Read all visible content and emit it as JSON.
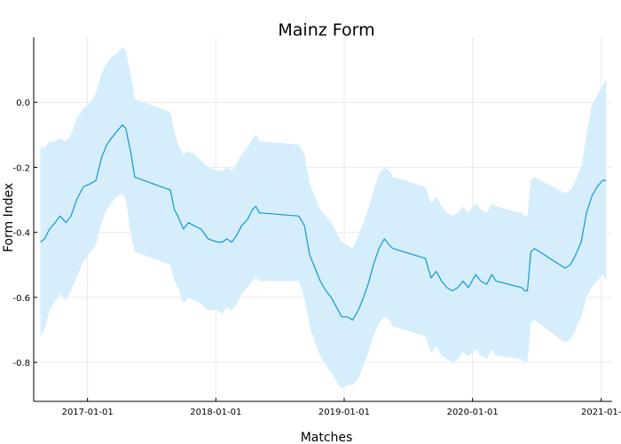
{
  "chart_data": {
    "type": "line",
    "title": "Mainz Form",
    "xlabel": "Matches",
    "ylabel": "Form Index",
    "x_ticks": [
      "2017-01-01",
      "2018-01-01",
      "2019-01-01",
      "2020-01-01",
      "2021-01-"
    ],
    "y_ticks": [
      "0.0",
      "-0.2",
      "-0.4",
      "-0.6",
      "-0.8"
    ],
    "ylim": [
      -0.92,
      0.2
    ],
    "xlim": [
      "2016-08-01",
      "2021-02-01"
    ],
    "grid": true,
    "legend": "none",
    "colors": {
      "line": "#0f97d9",
      "band": "#d6eefb"
    },
    "series": [
      {
        "type": "line",
        "x": [
          "2016-08-20",
          "2016-09-01",
          "2016-09-15",
          "2016-10-01",
          "2016-10-15",
          "2016-11-01",
          "2016-11-15",
          "2016-12-01",
          "2016-12-20",
          "2017-01-10",
          "2017-01-25",
          "2017-02-10",
          "2017-02-25",
          "2017-03-10",
          "2017-03-25",
          "2017-04-10",
          "2017-04-20",
          "2017-05-05",
          "2017-05-15",
          "2017-08-25",
          "2017-09-05",
          "2017-09-15",
          "2017-10-01",
          "2017-10-15",
          "2017-11-01",
          "2017-11-20",
          "2017-12-10",
          "2018-01-05",
          "2018-01-20",
          "2018-02-01",
          "2018-02-15",
          "2018-03-01",
          "2018-03-15",
          "2018-04-01",
          "2018-04-15",
          "2018-04-25",
          "2018-05-05",
          "2018-08-25",
          "2018-09-10",
          "2018-09-25",
          "2018-10-10",
          "2018-10-25",
          "2018-11-10",
          "2018-11-25",
          "2018-12-10",
          "2018-12-25",
          "2019-01-10",
          "2019-01-25",
          "2019-02-10",
          "2019-02-25",
          "2019-03-10",
          "2019-03-25",
          "2019-04-10",
          "2019-04-25",
          "2019-05-10",
          "2019-05-20",
          "2019-08-20",
          "2019-09-05",
          "2019-09-20",
          "2019-10-05",
          "2019-10-20",
          "2019-11-05",
          "2019-11-20",
          "2019-12-05",
          "2019-12-20",
          "2020-01-10",
          "2020-01-25",
          "2020-02-10",
          "2020-02-25",
          "2020-03-08",
          "2020-05-20",
          "2020-05-28",
          "2020-06-05",
          "2020-06-15",
          "2020-06-25",
          "2020-09-20",
          "2020-10-05",
          "2020-10-20",
          "2020-11-05",
          "2020-11-20",
          "2020-12-05",
          "2020-12-20",
          "2021-01-05",
          "2021-01-15"
        ],
        "y": [
          -0.43,
          -0.42,
          -0.39,
          -0.37,
          -0.35,
          -0.37,
          -0.35,
          -0.3,
          -0.26,
          -0.25,
          -0.24,
          -0.17,
          -0.13,
          -0.11,
          -0.09,
          -0.07,
          -0.08,
          -0.16,
          -0.23,
          -0.27,
          -0.33,
          -0.35,
          -0.39,
          -0.37,
          -0.38,
          -0.39,
          -0.42,
          -0.43,
          -0.43,
          -0.42,
          -0.43,
          -0.41,
          -0.38,
          -0.36,
          -0.33,
          -0.32,
          -0.34,
          -0.35,
          -0.38,
          -0.47,
          -0.51,
          -0.55,
          -0.58,
          -0.6,
          -0.63,
          -0.66,
          -0.66,
          -0.67,
          -0.64,
          -0.6,
          -0.56,
          -0.5,
          -0.45,
          -0.42,
          -0.44,
          -0.45,
          -0.48,
          -0.54,
          -0.52,
          -0.55,
          -0.57,
          -0.58,
          -0.57,
          -0.55,
          -0.57,
          -0.53,
          -0.55,
          -0.56,
          -0.53,
          -0.55,
          -0.57,
          -0.58,
          -0.58,
          -0.46,
          -0.45,
          -0.51,
          -0.5,
          -0.47,
          -0.43,
          -0.34,
          -0.29,
          -0.26,
          -0.24,
          -0.24
        ],
        "lower": [
          -0.72,
          -0.7,
          -0.64,
          -0.61,
          -0.59,
          -0.61,
          -0.58,
          -0.54,
          -0.49,
          -0.46,
          -0.44,
          -0.37,
          -0.33,
          -0.31,
          -0.29,
          -0.28,
          -0.3,
          -0.41,
          -0.46,
          -0.5,
          -0.55,
          -0.57,
          -0.62,
          -0.6,
          -0.61,
          -0.62,
          -0.64,
          -0.64,
          -0.65,
          -0.63,
          -0.64,
          -0.62,
          -0.59,
          -0.57,
          -0.55,
          -0.54,
          -0.55,
          -0.55,
          -0.6,
          -0.69,
          -0.74,
          -0.78,
          -0.81,
          -0.83,
          -0.86,
          -0.88,
          -0.87,
          -0.87,
          -0.85,
          -0.81,
          -0.77,
          -0.72,
          -0.68,
          -0.66,
          -0.67,
          -0.69,
          -0.72,
          -0.77,
          -0.75,
          -0.78,
          -0.79,
          -0.8,
          -0.79,
          -0.77,
          -0.78,
          -0.76,
          -0.78,
          -0.79,
          -0.76,
          -0.78,
          -0.79,
          -0.8,
          -0.8,
          -0.68,
          -0.67,
          -0.74,
          -0.73,
          -0.7,
          -0.66,
          -0.6,
          -0.57,
          -0.55,
          -0.53,
          -0.55
        ],
        "upper": [
          -0.14,
          -0.14,
          -0.12,
          -0.12,
          -0.11,
          -0.12,
          -0.1,
          -0.05,
          -0.02,
          0.0,
          0.03,
          0.09,
          0.12,
          0.14,
          0.15,
          0.17,
          0.16,
          0.08,
          0.01,
          -0.03,
          -0.09,
          -0.13,
          -0.16,
          -0.15,
          -0.16,
          -0.18,
          -0.2,
          -0.21,
          -0.21,
          -0.2,
          -0.21,
          -0.19,
          -0.16,
          -0.14,
          -0.11,
          -0.1,
          -0.12,
          -0.13,
          -0.16,
          -0.25,
          -0.29,
          -0.33,
          -0.35,
          -0.37,
          -0.4,
          -0.43,
          -0.44,
          -0.45,
          -0.41,
          -0.37,
          -0.33,
          -0.27,
          -0.22,
          -0.2,
          -0.21,
          -0.23,
          -0.26,
          -0.31,
          -0.29,
          -0.32,
          -0.34,
          -0.35,
          -0.34,
          -0.32,
          -0.34,
          -0.31,
          -0.33,
          -0.34,
          -0.31,
          -0.32,
          -0.34,
          -0.35,
          -0.35,
          -0.24,
          -0.23,
          -0.28,
          -0.27,
          -0.24,
          -0.2,
          -0.1,
          -0.01,
          0.02,
          0.05,
          0.07
        ]
      }
    ]
  }
}
